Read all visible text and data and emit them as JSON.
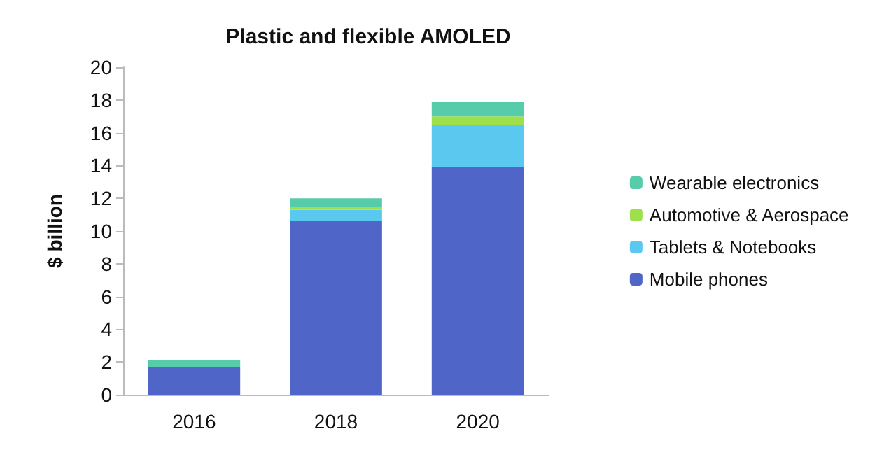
{
  "chart_data": {
    "type": "bar",
    "title": "Plastic and flexible AMOLED",
    "ylabel": "$ billion",
    "categories": [
      "2016",
      "2018",
      "2020"
    ],
    "stacked": true,
    "series": [
      {
        "name": "Mobile phones",
        "color": "#4f66c8",
        "values": [
          1.7,
          10.6,
          13.9
        ]
      },
      {
        "name": "Tablets & Notebooks",
        "color": "#5bc8f0",
        "values": [
          0,
          0.7,
          2.6
        ]
      },
      {
        "name": "Automotive & Aerospace",
        "color": "#9ee04a",
        "values": [
          0,
          0.2,
          0.5
        ]
      },
      {
        "name": "Wearable electronics",
        "color": "#56ccaa",
        "values": [
          0.4,
          0.5,
          0.9
        ]
      }
    ],
    "ylim": [
      0,
      20
    ],
    "yticks": [
      0,
      2,
      4,
      6,
      8,
      10,
      12,
      14,
      16,
      18,
      20
    ],
    "grid": false,
    "legend": "right"
  }
}
